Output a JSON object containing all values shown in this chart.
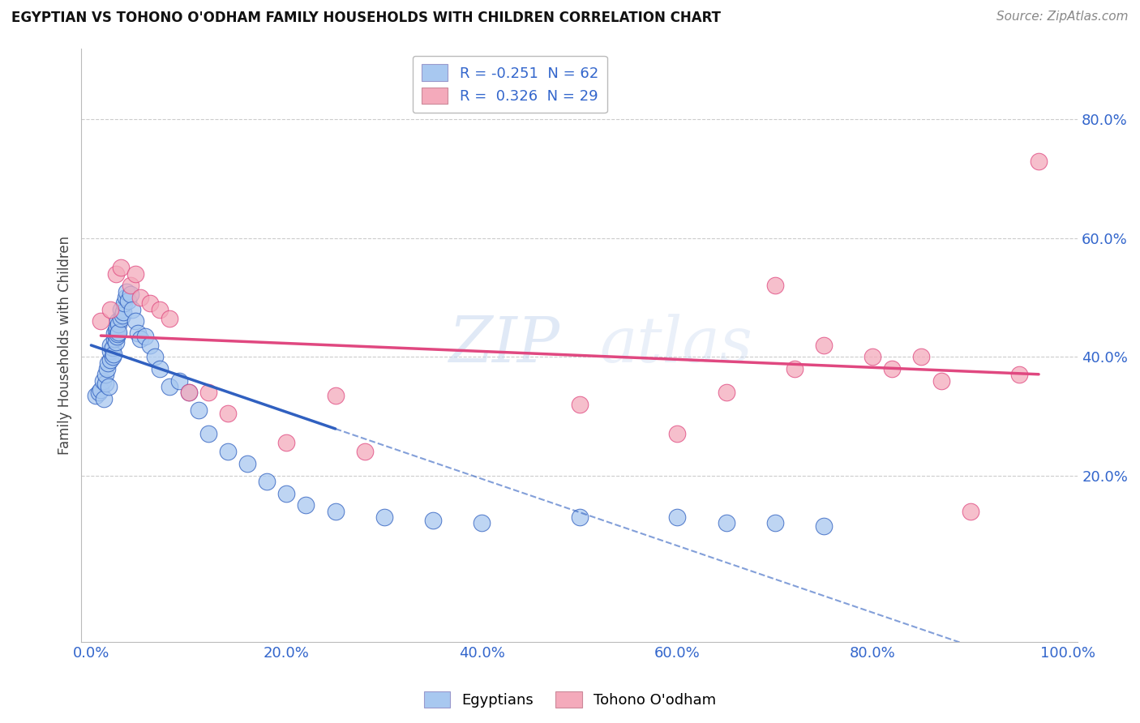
{
  "title": "EGYPTIAN VS TOHONO O'ODHAM FAMILY HOUSEHOLDS WITH CHILDREN CORRELATION CHART",
  "source": "Source: ZipAtlas.com",
  "ylabel": "Family Households with Children",
  "legend_labels": [
    "Egyptians",
    "Tohono O'odham"
  ],
  "legend_R": [
    -0.251,
    0.326
  ],
  "legend_N": [
    62,
    29
  ],
  "xlim": [
    -0.01,
    1.01
  ],
  "ylim": [
    -0.08,
    0.92
  ],
  "ytick_labels": [
    "20.0%",
    "40.0%",
    "60.0%",
    "80.0%"
  ],
  "ytick_values": [
    0.2,
    0.4,
    0.6,
    0.8
  ],
  "xtick_labels": [
    "0.0%",
    "20.0%",
    "40.0%",
    "60.0%",
    "80.0%",
    "100.0%"
  ],
  "xtick_values": [
    0.0,
    0.2,
    0.4,
    0.6,
    0.8,
    1.0
  ],
  "blue_color": "#A8C8F0",
  "pink_color": "#F4AABB",
  "blue_line_color": "#3060C0",
  "pink_line_color": "#E04880",
  "grid_color": "#CCCCCC",
  "watermark_zip": "ZIP",
  "watermark_atlas": "atlas",
  "blue_x": [
    0.005,
    0.008,
    0.01,
    0.012,
    0.013,
    0.015,
    0.015,
    0.016,
    0.017,
    0.018,
    0.02,
    0.02,
    0.02,
    0.022,
    0.022,
    0.023,
    0.024,
    0.024,
    0.025,
    0.025,
    0.026,
    0.026,
    0.027,
    0.027,
    0.028,
    0.028,
    0.03,
    0.03,
    0.032,
    0.033,
    0.034,
    0.035,
    0.036,
    0.038,
    0.04,
    0.042,
    0.045,
    0.048,
    0.05,
    0.055,
    0.06,
    0.065,
    0.07,
    0.08,
    0.09,
    0.1,
    0.11,
    0.12,
    0.14,
    0.16,
    0.18,
    0.2,
    0.22,
    0.25,
    0.3,
    0.35,
    0.4,
    0.5,
    0.6,
    0.65,
    0.7,
    0.75
  ],
  "blue_y": [
    0.335,
    0.34,
    0.345,
    0.36,
    0.33,
    0.355,
    0.37,
    0.38,
    0.39,
    0.35,
    0.395,
    0.41,
    0.42,
    0.4,
    0.415,
    0.405,
    0.43,
    0.44,
    0.445,
    0.425,
    0.45,
    0.435,
    0.46,
    0.438,
    0.455,
    0.442,
    0.465,
    0.48,
    0.47,
    0.475,
    0.49,
    0.5,
    0.51,
    0.495,
    0.505,
    0.48,
    0.46,
    0.44,
    0.43,
    0.435,
    0.42,
    0.4,
    0.38,
    0.35,
    0.36,
    0.34,
    0.31,
    0.27,
    0.24,
    0.22,
    0.19,
    0.17,
    0.15,
    0.14,
    0.13,
    0.125,
    0.12,
    0.13,
    0.13,
    0.12,
    0.12,
    0.115
  ],
  "pink_x": [
    0.01,
    0.02,
    0.025,
    0.03,
    0.04,
    0.045,
    0.05,
    0.06,
    0.07,
    0.08,
    0.1,
    0.12,
    0.14,
    0.2,
    0.25,
    0.28,
    0.5,
    0.6,
    0.65,
    0.7,
    0.72,
    0.75,
    0.8,
    0.82,
    0.85,
    0.87,
    0.9,
    0.95,
    0.97
  ],
  "pink_y": [
    0.46,
    0.48,
    0.54,
    0.55,
    0.52,
    0.54,
    0.5,
    0.49,
    0.48,
    0.465,
    0.34,
    0.34,
    0.305,
    0.255,
    0.335,
    0.24,
    0.32,
    0.27,
    0.34,
    0.52,
    0.38,
    0.42,
    0.4,
    0.38,
    0.4,
    0.36,
    0.14,
    0.37,
    0.73
  ]
}
